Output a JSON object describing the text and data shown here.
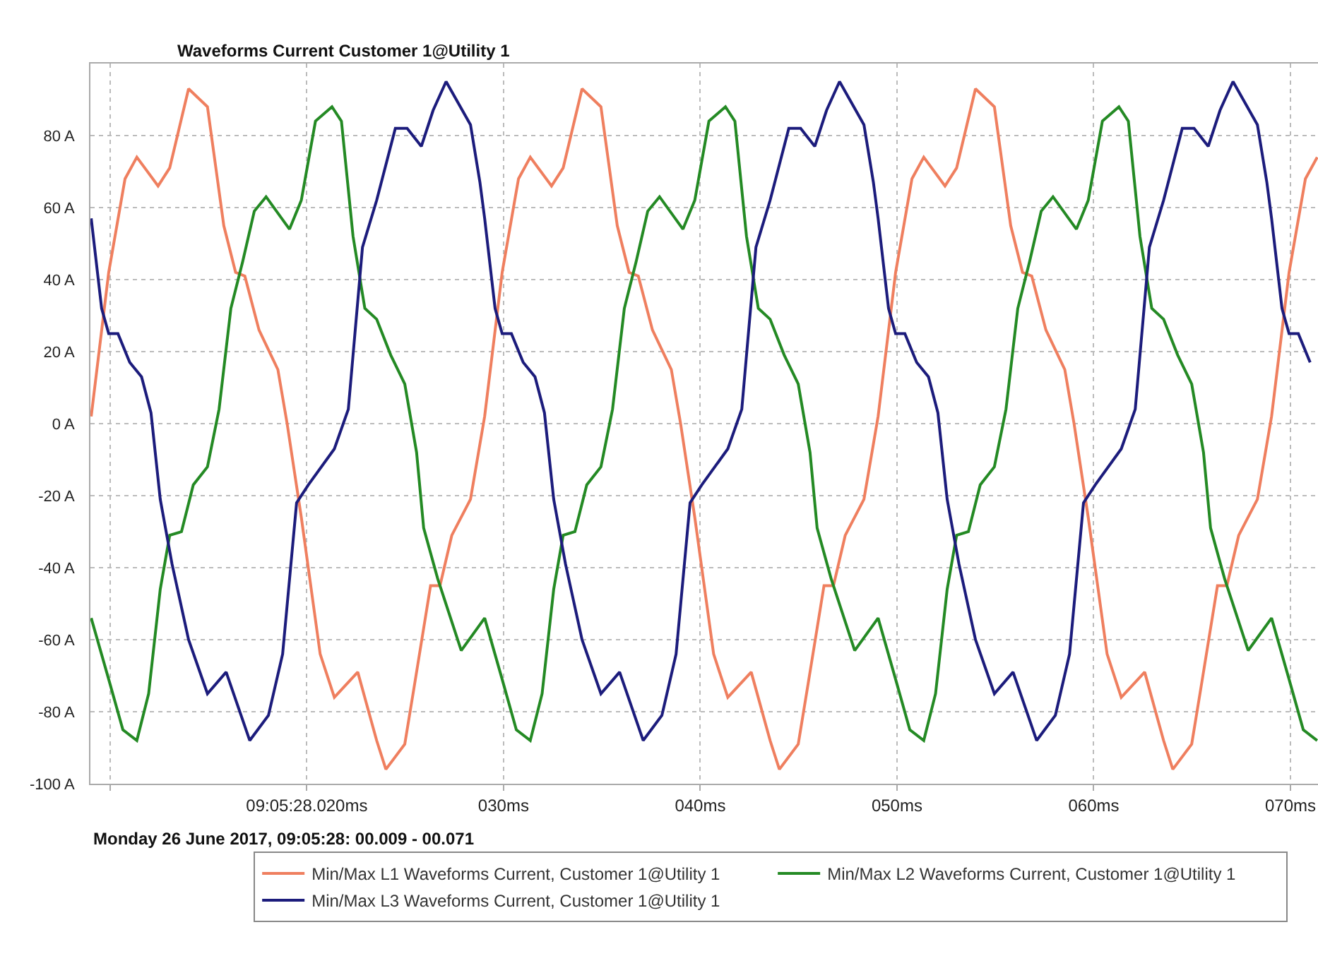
{
  "chart_data": {
    "type": "line",
    "title": "Waveforms Current Customer 1@Utility 1",
    "xlabel": "Monday 26 June 2017, 09:05:28: 00.009 - 00.071",
    "xlim": [
      9,
      71.4
    ],
    "xticks": [
      {
        "value": 10,
        "label": null
      },
      {
        "value": 20,
        "label": "09:05:28.020ms"
      },
      {
        "value": 30,
        "label": "030ms"
      },
      {
        "value": 40,
        "label": "040ms"
      },
      {
        "value": 50,
        "label": "050ms"
      },
      {
        "value": 60,
        "label": "060ms"
      },
      {
        "value": 70,
        "label": "070ms"
      }
    ],
    "ylim": [
      -100,
      100
    ],
    "yticks": [
      {
        "value": -100,
        "label": "-100 A"
      },
      {
        "value": -80,
        "label": "-80 A"
      },
      {
        "value": -60,
        "label": "-60 A"
      },
      {
        "value": -40,
        "label": "-40 A"
      },
      {
        "value": -20,
        "label": "-20 A"
      },
      {
        "value": 0,
        "label": "0 A"
      },
      {
        "value": 20,
        "label": "20 A"
      },
      {
        "value": 40,
        "label": "40 A"
      },
      {
        "value": 60,
        "label": "60 A"
      },
      {
        "value": 80,
        "label": "80 A"
      }
    ],
    "grid": true,
    "legend": "bottom",
    "line_style": "solid",
    "marker": "none",
    "series": [
      {
        "name": "Min/Max L1 Waveforms Current, Customer 1@Utility 1",
        "color": "#ef7f5f",
        "x": [
          9.04,
          9.93,
          10.76,
          11.36,
          12.44,
          13.03,
          13.99,
          14.95,
          15.78,
          16.38,
          16.85,
          17.57,
          18.53,
          19.0,
          19.72,
          20.68,
          21.4,
          22.59,
          23.55,
          24.02,
          24.98,
          25.46,
          26.29,
          26.77,
          27.37,
          28.32,
          29.04,
          29.93,
          30.76,
          31.36,
          32.44,
          33.03,
          33.99,
          34.95,
          35.78,
          36.38,
          36.85,
          37.57,
          38.53,
          39.0,
          39.72,
          40.68,
          41.4,
          42.59,
          43.55,
          44.02,
          44.98,
          45.46,
          46.29,
          46.77,
          47.37,
          48.32,
          49.04,
          49.93,
          50.76,
          51.36,
          52.44,
          53.03,
          53.99,
          54.95,
          55.78,
          56.38,
          56.85,
          57.57,
          58.53,
          59.0,
          59.72,
          60.68,
          61.4,
          62.59,
          63.55,
          64.02,
          64.98,
          65.46,
          66.29,
          66.77,
          67.37,
          68.32,
          69.04,
          69.93,
          70.76,
          71.36
        ],
        "values": [
          2,
          42,
          68,
          74,
          66,
          71,
          93,
          88,
          55,
          42,
          41,
          26,
          15,
          0,
          -26,
          -64,
          -76,
          -69,
          -88,
          -96,
          -89,
          -73,
          -45,
          -45,
          -31,
          -21,
          2,
          42,
          68,
          74,
          66,
          71,
          93,
          88,
          55,
          42,
          41,
          26,
          15,
          0,
          -26,
          -64,
          -76,
          -69,
          -88,
          -96,
          -89,
          -73,
          -45,
          -45,
          -31,
          -21,
          2,
          42,
          68,
          74,
          66,
          71,
          93,
          88,
          55,
          42,
          41,
          26,
          15,
          0,
          -26,
          -64,
          -76,
          -69,
          -88,
          -96,
          -89,
          -73,
          -45,
          -45,
          -31,
          -21,
          2,
          42,
          68,
          74
        ]
      },
      {
        "name": "Min/Max L2 Waveforms Current, Customer 1@Utility 1",
        "color": "#248a24",
        "x": [
          9.04,
          9.93,
          10.65,
          11.36,
          11.96,
          12.55,
          13.03,
          13.63,
          14.23,
          14.95,
          15.54,
          16.14,
          16.74,
          17.33,
          17.93,
          19.12,
          19.72,
          20.44,
          21.28,
          21.76,
          22.35,
          22.95,
          23.55,
          24.27,
          24.98,
          25.58,
          25.94,
          26.65,
          27.85,
          29.04,
          29.93,
          30.65,
          31.36,
          31.96,
          32.55,
          33.03,
          33.63,
          34.23,
          34.95,
          35.54,
          36.14,
          36.74,
          37.33,
          37.93,
          39.12,
          39.72,
          40.44,
          41.28,
          41.76,
          42.35,
          42.95,
          43.55,
          44.27,
          44.98,
          45.58,
          45.94,
          46.65,
          47.85,
          49.04,
          49.93,
          50.65,
          51.36,
          51.96,
          52.55,
          53.03,
          53.63,
          54.23,
          54.95,
          55.54,
          56.14,
          56.74,
          57.33,
          57.93,
          59.12,
          59.72,
          60.44,
          61.28,
          61.76,
          62.35,
          62.95,
          63.55,
          64.27,
          64.98,
          65.58,
          65.94,
          66.65,
          67.85,
          69.04,
          69.93,
          70.65,
          71.36
        ],
        "values": [
          -54,
          -71,
          -85,
          -88,
          -75,
          -46,
          -31,
          -30,
          -17,
          -12,
          4,
          32,
          45,
          59,
          63,
          54,
          62,
          84,
          88,
          84,
          52,
          32,
          29,
          19,
          11,
          -8,
          -29,
          -43,
          -63,
          -54,
          -71,
          -85,
          -88,
          -75,
          -46,
          -31,
          -30,
          -17,
          -12,
          4,
          32,
          45,
          59,
          63,
          54,
          62,
          84,
          88,
          84,
          52,
          32,
          29,
          19,
          11,
          -8,
          -29,
          -43,
          -63,
          -54,
          -71,
          -85,
          -88,
          -75,
          -46,
          -31,
          -30,
          -17,
          -12,
          4,
          32,
          45,
          59,
          63,
          54,
          62,
          84,
          88,
          84,
          52,
          32,
          29,
          19,
          11,
          -8,
          -29,
          -43,
          -63,
          -54,
          -71,
          -85,
          -88
        ]
      },
      {
        "name": "Min/Max L3 Waveforms Current, Customer 1@Utility 1",
        "color": "#1c1c7c",
        "x": [
          9.04,
          9.57,
          9.93,
          10.4,
          11.0,
          11.6,
          12.08,
          12.55,
          13.15,
          13.99,
          14.95,
          15.9,
          17.1,
          18.05,
          18.77,
          19.48,
          20.08,
          21.4,
          22.11,
          22.83,
          23.55,
          24.5,
          25.1,
          25.82,
          26.42,
          27.08,
          28.32,
          28.8,
          29.04,
          29.57,
          29.93,
          30.4,
          31.0,
          31.6,
          32.08,
          32.55,
          33.15,
          33.99,
          34.95,
          35.9,
          37.1,
          38.05,
          38.77,
          39.48,
          40.08,
          41.4,
          42.11,
          42.83,
          43.55,
          44.5,
          45.1,
          45.82,
          46.42,
          47.08,
          48.32,
          48.8,
          49.04,
          49.57,
          49.93,
          50.4,
          51.0,
          51.6,
          52.08,
          52.55,
          53.15,
          53.99,
          54.95,
          55.9,
          57.1,
          58.05,
          58.77,
          59.48,
          60.08,
          61.4,
          62.11,
          62.83,
          63.55,
          64.5,
          65.1,
          65.82,
          66.42,
          67.08,
          68.32,
          68.8,
          69.04,
          69.57,
          69.93,
          70.4,
          71.0
        ],
        "values": [
          57,
          32,
          25,
          25,
          17,
          13,
          3,
          -21,
          -39,
          -60,
          -75,
          -69,
          -88,
          -81,
          -64,
          -22,
          -17,
          -7,
          4,
          49,
          62,
          82,
          82,
          77,
          87,
          95,
          83,
          67,
          57,
          32,
          25,
          25,
          17,
          13,
          3,
          -21,
          -39,
          -60,
          -75,
          -69,
          -88,
          -81,
          -64,
          -22,
          -17,
          -7,
          4,
          49,
          62,
          82,
          82,
          77,
          87,
          95,
          83,
          67,
          57,
          32,
          25,
          25,
          17,
          13,
          3,
          -21,
          -39,
          -60,
          -75,
          -69,
          -88,
          -81,
          -64,
          -22,
          -17,
          -7,
          4,
          49,
          62,
          82,
          82,
          77,
          87,
          95,
          83,
          67,
          57,
          32,
          25,
          25,
          17
        ]
      }
    ]
  }
}
